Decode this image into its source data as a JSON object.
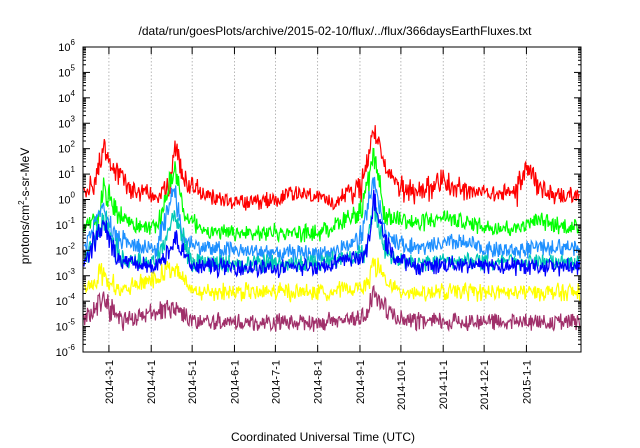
{
  "chart_data": {
    "type": "line",
    "title": "/data/run/goesPlots/archive/2015-02-10/flux/../flux/366daysEarthFluxes.txt",
    "xlabel": "Coordinated Universal Time (UTC)",
    "ylabel": {
      "prefix": "protons/cm",
      "sup": "2",
      "suffix": "-s-sr-MeV"
    },
    "yscale": "log",
    "ylim": [
      1e-06,
      1000000.0
    ],
    "ytick_mantissa": "10",
    "ytick_exponents": [
      "-6",
      "-5",
      "-4",
      "-3",
      "-2",
      "-1",
      "0",
      "1",
      "2",
      "3",
      "4",
      "5",
      "6"
    ],
    "xlim": [
      "2014-02-10",
      "2015-02-10"
    ],
    "xtick_labels": [
      "2014-3-1",
      "2014-4-1",
      "2014-5-1",
      "2014-6-1",
      "2014-7-1",
      "2014-8-1",
      "2014-9-1",
      "2014-10-1",
      "2014-11-1",
      "2014-12-1",
      "2015-1-1"
    ],
    "xtick_dates": [
      "2014-03-01",
      "2014-04-01",
      "2014-05-01",
      "2014-06-01",
      "2014-07-01",
      "2014-08-01",
      "2014-09-01",
      "2014-10-01",
      "2014-11-01",
      "2014-12-01",
      "2015-01-01"
    ],
    "grid": true,
    "series": [
      {
        "color": "#ff0000",
        "baseline": 1.0,
        "x": [
          "2014-02-10",
          "2014-02-20",
          "2014-02-25",
          "2014-03-05",
          "2014-03-15",
          "2014-03-25",
          "2014-04-05",
          "2014-04-15",
          "2014-04-18",
          "2014-04-25",
          "2014-05-10",
          "2014-06-01",
          "2014-06-20",
          "2014-07-10",
          "2014-07-25",
          "2014-08-10",
          "2014-08-25",
          "2014-09-02",
          "2014-09-11",
          "2014-09-20",
          "2014-10-01",
          "2014-10-15",
          "2014-11-01",
          "2014-11-10",
          "2014-11-20",
          "2014-12-10",
          "2014-12-25",
          "2015-01-01",
          "2015-01-10",
          "2015-01-20",
          "2015-02-10"
        ],
        "y": [
          2,
          10,
          150,
          20,
          5,
          3,
          2,
          5,
          400,
          10,
          2,
          1,
          1,
          2,
          2,
          1,
          3,
          5,
          1000,
          20,
          5,
          3,
          10,
          4,
          3,
          2,
          3,
          40,
          5,
          2,
          2
        ]
      },
      {
        "color": "#00ff00",
        "baseline": 0.1,
        "x": [
          "2014-02-10",
          "2014-02-20",
          "2014-02-25",
          "2014-03-05",
          "2014-03-15",
          "2014-03-25",
          "2014-04-05",
          "2014-04-18",
          "2014-04-25",
          "2014-05-10",
          "2014-06-01",
          "2014-07-01",
          "2014-08-01",
          "2014-09-02",
          "2014-09-11",
          "2014-09-20",
          "2014-10-01",
          "2014-10-15",
          "2014-11-01",
          "2014-11-20",
          "2014-12-10",
          "2014-12-25",
          "2015-01-10",
          "2015-02-10"
        ],
        "y": [
          0.1,
          0.2,
          5,
          0.5,
          0.2,
          0.1,
          0.1,
          50,
          0.3,
          0.08,
          0.06,
          0.07,
          0.06,
          0.5,
          80,
          0.3,
          0.2,
          0.15,
          0.3,
          0.15,
          0.1,
          0.1,
          0.2,
          0.08
        ]
      },
      {
        "color": "#1e90ff",
        "baseline": 0.01,
        "x": [
          "2014-02-10",
          "2014-02-25",
          "2014-03-05",
          "2014-03-20",
          "2014-04-05",
          "2014-04-18",
          "2014-04-25",
          "2014-05-15",
          "2014-06-15",
          "2014-07-15",
          "2014-08-15",
          "2014-09-02",
          "2014-09-11",
          "2014-09-20",
          "2014-10-05",
          "2014-10-20",
          "2014-11-10",
          "2014-12-01",
          "2014-12-25",
          "2015-01-15",
          "2015-02-10"
        ],
        "y": [
          0.02,
          1,
          0.05,
          0.02,
          0.015,
          5,
          0.03,
          0.015,
          0.012,
          0.01,
          0.012,
          0.05,
          10,
          0.05,
          0.02,
          0.015,
          0.03,
          0.015,
          0.012,
          0.02,
          0.015
        ]
      },
      {
        "color": "#00c8b4",
        "baseline": 0.004,
        "x": [
          "2014-02-10",
          "2014-02-25",
          "2014-03-10",
          "2014-04-05",
          "2014-04-18",
          "2014-05-01",
          "2014-06-01",
          "2014-07-01",
          "2014-08-01",
          "2014-09-05",
          "2014-09-11",
          "2014-09-20",
          "2014-10-10",
          "2014-11-10",
          "2014-12-10",
          "2015-01-10",
          "2015-02-10"
        ],
        "y": [
          0.005,
          0.3,
          0.006,
          0.004,
          0.5,
          0.004,
          0.004,
          0.004,
          0.004,
          0.01,
          1,
          0.01,
          0.004,
          0.006,
          0.004,
          0.005,
          0.004
        ]
      },
      {
        "color": "#0000ff",
        "baseline": 0.0025,
        "x": [
          "2014-02-10",
          "2014-02-25",
          "2014-03-10",
          "2014-04-05",
          "2014-04-18",
          "2014-05-01",
          "2014-06-01",
          "2014-07-01",
          "2014-08-01",
          "2014-09-05",
          "2014-09-11",
          "2014-09-25",
          "2014-10-10",
          "2014-11-10",
          "2014-12-10",
          "2015-01-10",
          "2015-02-10"
        ],
        "y": [
          0.003,
          0.2,
          0.004,
          0.003,
          0.05,
          0.003,
          0.003,
          0.0025,
          0.003,
          0.008,
          1,
          0.008,
          0.003,
          0.004,
          0.003,
          0.003,
          0.003
        ]
      },
      {
        "color": "#ffff00",
        "baseline": 0.0003,
        "x": [
          "2014-02-10",
          "2014-02-25",
          "2014-03-10",
          "2014-04-18",
          "2014-05-01",
          "2014-06-01",
          "2014-07-01",
          "2014-08-01",
          "2014-09-05",
          "2014-09-11",
          "2014-09-25",
          "2014-10-10",
          "2014-11-10",
          "2014-12-10",
          "2015-01-10",
          "2015-02-10"
        ],
        "y": [
          0.0003,
          0.002,
          0.0003,
          0.003,
          0.0003,
          0.0003,
          0.0003,
          0.0003,
          0.0005,
          0.005,
          0.0004,
          0.0003,
          0.0003,
          0.0003,
          0.0003,
          0.0003
        ]
      },
      {
        "color": "#a0306a",
        "baseline": 2e-05,
        "x": [
          "2014-02-10",
          "2014-02-25",
          "2014-03-10",
          "2014-04-18",
          "2014-05-01",
          "2014-06-01",
          "2014-07-01",
          "2014-08-01",
          "2014-09-05",
          "2014-09-11",
          "2014-09-25",
          "2014-10-10",
          "2014-11-10",
          "2014-12-10",
          "2015-01-10",
          "2015-02-10"
        ],
        "y": [
          2e-05,
          0.0002,
          2e-05,
          0.0001,
          2e-05,
          2e-05,
          2e-05,
          2e-05,
          3e-05,
          0.0003,
          3e-05,
          2e-05,
          2e-05,
          2e-05,
          2e-05,
          2e-05
        ]
      }
    ]
  }
}
